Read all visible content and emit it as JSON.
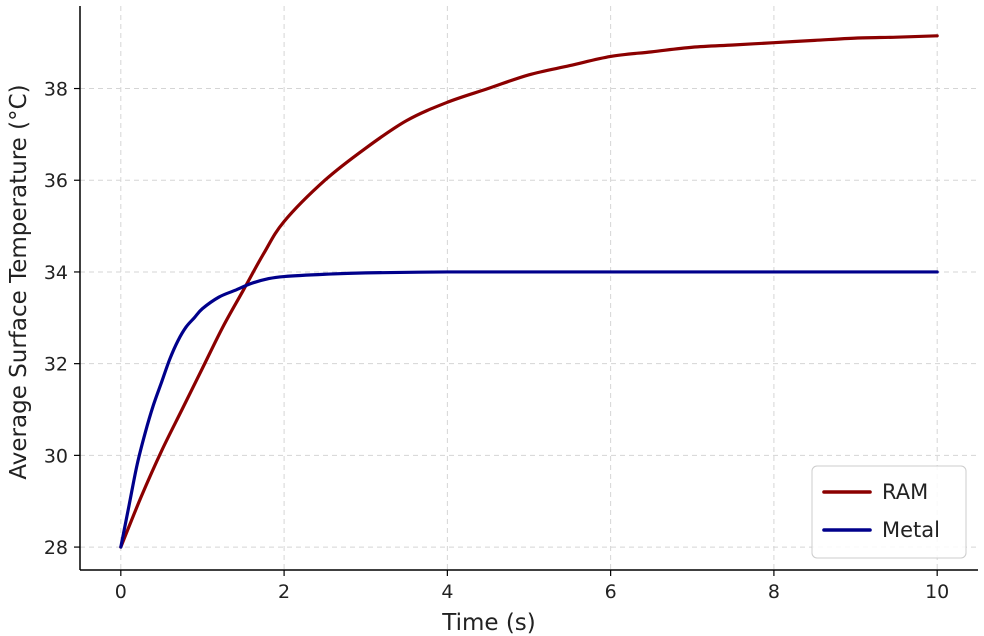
{
  "chart_data": {
    "type": "line",
    "title": "",
    "xlabel": "Time (s)",
    "ylabel": "Average Surface Temperature (°C)",
    "xlim": [
      -0.5,
      10.5
    ],
    "ylim": [
      27.5,
      39.8
    ],
    "xticks": [
      0,
      2,
      4,
      6,
      8,
      10
    ],
    "yticks": [
      28,
      30,
      32,
      34,
      36,
      38
    ],
    "grid": true,
    "legend_position": "bottom-right",
    "series": [
      {
        "name": "RAM",
        "color": "#8b0000",
        "x": [
          0,
          0.25,
          0.5,
          0.75,
          1,
          1.25,
          1.5,
          1.75,
          2,
          2.5,
          3,
          3.5,
          4,
          4.5,
          5,
          5.5,
          6,
          6.5,
          7,
          7.5,
          8,
          8.5,
          9,
          9.5,
          10
        ],
        "y": [
          28.0,
          29.1,
          30.1,
          31.0,
          31.9,
          32.8,
          33.6,
          34.4,
          35.1,
          36.0,
          36.7,
          37.3,
          37.7,
          38.0,
          38.3,
          38.5,
          38.7,
          38.8,
          38.9,
          38.95,
          39.0,
          39.05,
          39.1,
          39.12,
          39.15
        ]
      },
      {
        "name": "Metal",
        "color": "#00008b",
        "x": [
          0,
          0.1,
          0.2,
          0.3,
          0.4,
          0.5,
          0.6,
          0.7,
          0.8,
          0.9,
          1,
          1.2,
          1.4,
          1.6,
          1.8,
          2,
          2.5,
          3,
          4,
          5,
          6,
          7,
          8,
          9,
          10
        ],
        "y": [
          28.0,
          28.9,
          29.8,
          30.5,
          31.1,
          31.6,
          32.1,
          32.5,
          32.8,
          33.0,
          33.2,
          33.45,
          33.6,
          33.75,
          33.85,
          33.9,
          33.95,
          33.98,
          34.0,
          34.0,
          34.0,
          34.0,
          34.0,
          34.0,
          34.0
        ]
      }
    ]
  }
}
